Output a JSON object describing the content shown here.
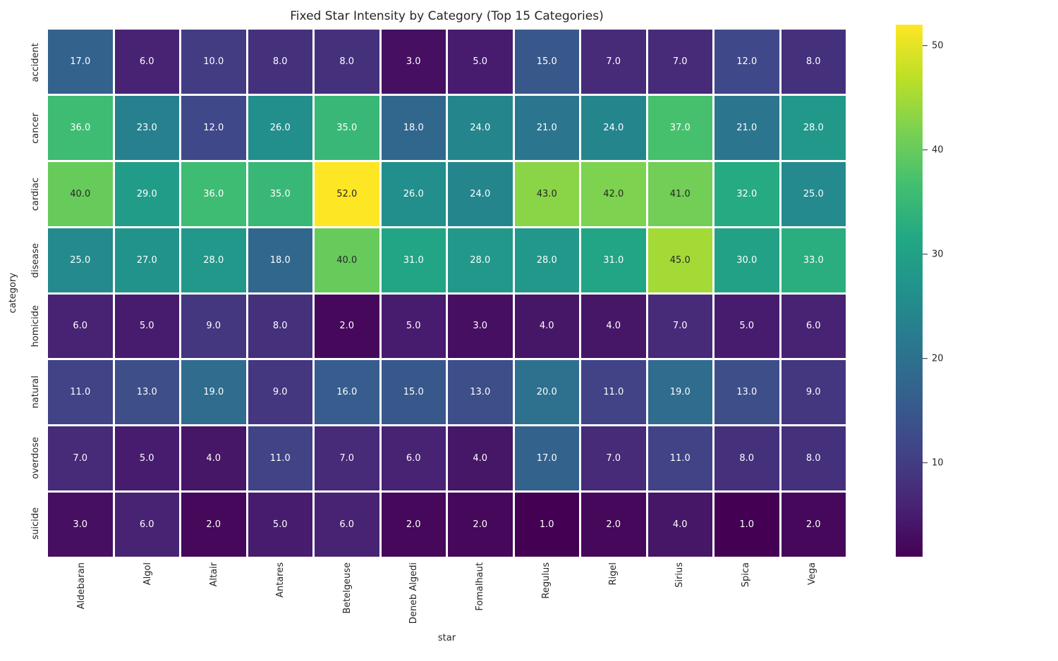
{
  "chart_data": {
    "type": "heatmap",
    "title": "Fixed Star Intensity by Category (Top 15 Categories)",
    "xlabel": "star",
    "ylabel": "category",
    "x_categories": [
      "Aldebaran",
      "Algol",
      "Altair",
      "Antares",
      "Betelgeuse",
      "Deneb Algedi",
      "Fomalhaut",
      "Regulus",
      "Rigel",
      "Sirius",
      "Spica",
      "Vega"
    ],
    "y_categories": [
      "accident",
      "cancer",
      "cardiac",
      "disease",
      "homicide",
      "natural",
      "overdose",
      "suicide"
    ],
    "values": [
      [
        17,
        6,
        10,
        8,
        8,
        3,
        5,
        15,
        7,
        7,
        12,
        8
      ],
      [
        36,
        23,
        12,
        26,
        35,
        18,
        24,
        21,
        24,
        37,
        21,
        28
      ],
      [
        40,
        29,
        36,
        35,
        52,
        26,
        24,
        43,
        42,
        41,
        32,
        25
      ],
      [
        25,
        27,
        28,
        18,
        40,
        31,
        28,
        28,
        31,
        45,
        30,
        33
      ],
      [
        6,
        5,
        9,
        8,
        2,
        5,
        3,
        4,
        4,
        7,
        5,
        6
      ],
      [
        11,
        13,
        19,
        9,
        16,
        15,
        13,
        20,
        11,
        19,
        13,
        9
      ],
      [
        7,
        5,
        4,
        11,
        7,
        6,
        4,
        17,
        7,
        11,
        8,
        8
      ],
      [
        3,
        6,
        2,
        5,
        6,
        2,
        2,
        1,
        2,
        4,
        1,
        2
      ]
    ],
    "annotation_decimals": 1,
    "colormap": "viridis",
    "colormap_stops": [
      "#440154",
      "#482475",
      "#414487",
      "#355f8d",
      "#2a788e",
      "#21918c",
      "#22a884",
      "#44bf70",
      "#7ad151",
      "#bddf26",
      "#fde725"
    ],
    "vmin": 1,
    "vmax": 52,
    "colorbar_ticks": [
      10,
      20,
      30,
      40,
      50
    ],
    "colorbar_position": "right",
    "grid": false,
    "colors": {
      "background": "#ffffff",
      "cell_gap": "#ffffff",
      "annotation_light": "#ffffff",
      "annotation_dark": "#262626",
      "tick_label": "#262626"
    }
  }
}
